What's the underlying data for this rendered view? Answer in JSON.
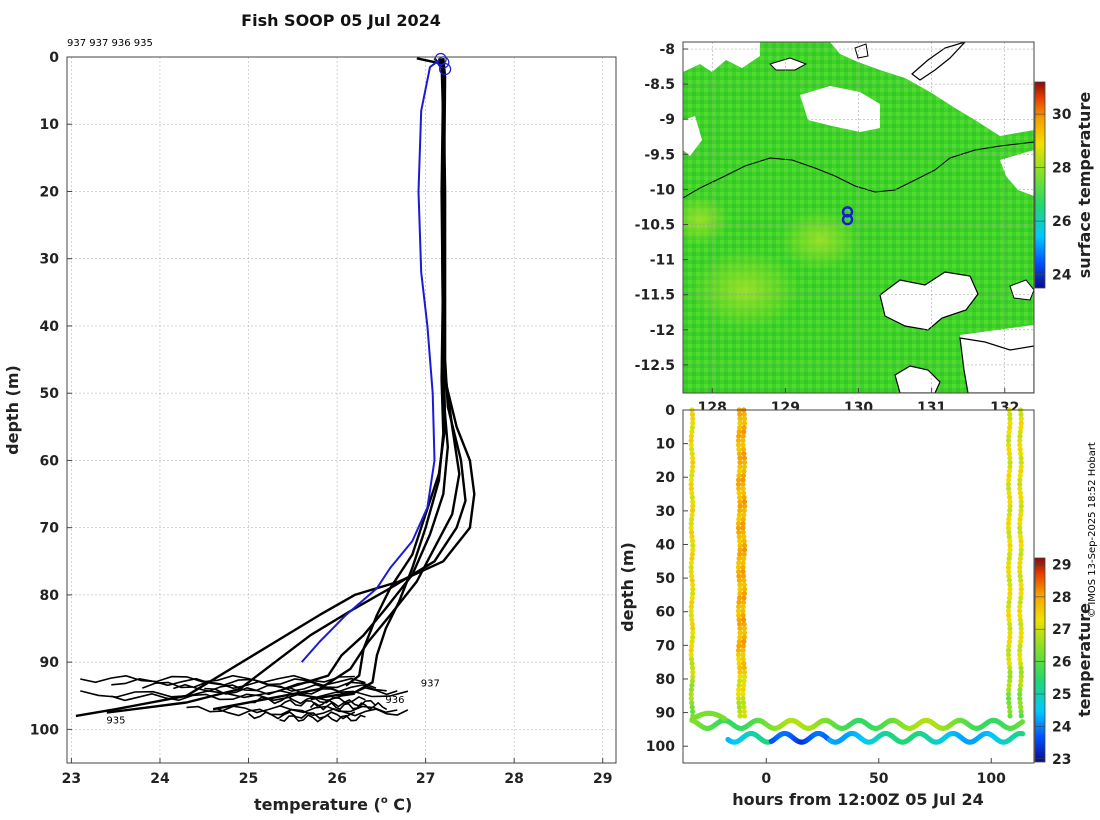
{
  "figure_title": "Fish SOOP 05 Jul 2024",
  "credit": "© IMOS 13-Sep-2025 18:52 Hobart",
  "colors": {
    "profile": "#000000",
    "latest_profile": "#1a1ad8",
    "land": "#ffffff",
    "coast": "#000000",
    "grid": "#b8b8b8"
  },
  "chart_data": [
    {
      "id": "profiles",
      "type": "line",
      "title": "Fish SOOP 05 Jul 2024",
      "xlabel": "temperature (",
      "xlabel_sup": "o",
      "xlabel_tail": " C)",
      "ylabel": "depth (m)",
      "xlim": [
        22.95,
        29.15
      ],
      "ylim": [
        105,
        0
      ],
      "xticks": [
        "23",
        "24",
        "25",
        "26",
        "27",
        "28",
        "29"
      ],
      "yticks": [
        "0",
        "10",
        "20",
        "30",
        "40",
        "50",
        "60",
        "70",
        "80",
        "90",
        "100"
      ],
      "profile_ids": "937 937 936 935",
      "end_labels": [
        {
          "text": "937",
          "t": 26.9,
          "d": 93
        },
        {
          "text": "936",
          "t": 26.5,
          "d": 95.5
        },
        {
          "text": "935",
          "t": 23.35,
          "d": 98.5
        }
      ],
      "surface_markers": [
        {
          "t": 27.17,
          "d": 0.3
        },
        {
          "t": 27.2,
          "d": 0.8
        },
        {
          "t": 27.22,
          "d": 1.8
        }
      ],
      "series": [
        {
          "name": "profile-a",
          "points": [
            [
              26.9,
              0.2
            ],
            [
              27.18,
              1
            ],
            [
              27.2,
              10
            ],
            [
              27.2,
              40
            ],
            [
              27.22,
              48
            ],
            [
              27.35,
              55
            ],
            [
              27.5,
              60
            ],
            [
              27.55,
              65
            ],
            [
              27.5,
              70
            ],
            [
              27.2,
              75
            ],
            [
              26.7,
              78
            ],
            [
              26.2,
              80
            ],
            [
              25.8,
              83
            ],
            [
              25.3,
              87
            ],
            [
              24.8,
              91
            ],
            [
              24.3,
              95
            ],
            [
              23.5,
              97
            ],
            [
              23.05,
              98
            ]
          ]
        },
        {
          "name": "profile-b",
          "points": [
            [
              27.15,
              0.2
            ],
            [
              27.2,
              2
            ],
            [
              27.22,
              20
            ],
            [
              27.22,
              45
            ],
            [
              27.25,
              52
            ],
            [
              27.4,
              60
            ],
            [
              27.45,
              66
            ],
            [
              27.35,
              70
            ],
            [
              27.1,
              75
            ],
            [
              26.6,
              79
            ],
            [
              26.2,
              82
            ],
            [
              25.7,
              86
            ],
            [
              25.3,
              90
            ],
            [
              24.9,
              94
            ],
            [
              24.3,
              96
            ],
            [
              23.4,
              97.5
            ]
          ]
        },
        {
          "name": "profile-c",
          "points": [
            [
              27.1,
              0.2
            ],
            [
              27.2,
              2
            ],
            [
              27.18,
              20
            ],
            [
              27.2,
              45
            ],
            [
              27.3,
              55
            ],
            [
              27.38,
              62
            ],
            [
              27.3,
              68
            ],
            [
              27.1,
              73
            ],
            [
              26.9,
              78
            ],
            [
              26.6,
              83
            ],
            [
              26.35,
              87
            ],
            [
              26.15,
              91
            ],
            [
              25.8,
              94
            ],
            [
              25.2,
              95.5
            ],
            [
              24.6,
              97
            ]
          ]
        },
        {
          "name": "profile-d",
          "points": [
            [
              27.2,
              0.2
            ],
            [
              27.22,
              3
            ],
            [
              27.2,
              30
            ],
            [
              27.18,
              48
            ],
            [
              27.2,
              56
            ],
            [
              27.15,
              63
            ],
            [
              27.0,
              70
            ],
            [
              26.85,
              76
            ],
            [
              26.7,
              81
            ],
            [
              26.55,
              85
            ],
            [
              26.45,
              89
            ],
            [
              26.4,
              93
            ],
            [
              26.2,
              94.5
            ],
            [
              25.7,
              95.5
            ]
          ]
        },
        {
          "name": "profile-e",
          "points": [
            [
              27.18,
              0.2
            ],
            [
              27.2,
              3
            ],
            [
              27.19,
              30
            ],
            [
              27.2,
              50
            ],
            [
              27.25,
              58
            ],
            [
              27.2,
              65
            ],
            [
              27.05,
              71
            ],
            [
              26.85,
              77
            ],
            [
              26.55,
              82
            ],
            [
              26.3,
              86
            ],
            [
              26.05,
              89
            ],
            [
              25.9,
              92
            ],
            [
              25.4,
              94
            ]
          ]
        },
        {
          "name": "profile-f",
          "points": [
            [
              27.2,
              0.2
            ],
            [
              27.21,
              4
            ],
            [
              27.2,
              40
            ],
            [
              27.22,
              55
            ],
            [
              27.15,
              62
            ],
            [
              27.0,
              68
            ],
            [
              26.85,
              74
            ],
            [
              26.6,
              79
            ],
            [
              26.45,
              83
            ],
            [
              26.3,
              88
            ],
            [
              26.25,
              92
            ],
            [
              26.1,
              93.5
            ]
          ]
        },
        {
          "name": "profile-latest",
          "latest": true,
          "points": [
            [
              27.15,
              0.5
            ],
            [
              27.05,
              1.5
            ],
            [
              26.95,
              8
            ],
            [
              26.92,
              20
            ],
            [
              26.95,
              32
            ],
            [
              27.02,
              40
            ],
            [
              27.08,
              50
            ],
            [
              27.1,
              60
            ],
            [
              27.02,
              67
            ],
            [
              26.85,
              72
            ],
            [
              26.6,
              76
            ],
            [
              26.45,
              79
            ],
            [
              26.1,
              83
            ],
            [
              25.8,
              87
            ],
            [
              25.6,
              90
            ]
          ]
        }
      ]
    },
    {
      "id": "sst-map",
      "type": "heatmap",
      "x_range": [
        127.6,
        132.4
      ],
      "y_range": [
        -12.9,
        -7.9
      ],
      "xticks": [
        "128",
        "129",
        "130",
        "131",
        "132"
      ],
      "yticks": [
        "-8",
        "-8.5",
        "-9",
        "-9.5",
        "-10",
        "-10.5",
        "-11",
        "-11.5",
        "-12",
        "-12.5"
      ],
      "station_markers": [
        {
          "lon": 129.85,
          "lat": -10.32
        },
        {
          "lon": 129.85,
          "lat": -10.43
        }
      ],
      "colorbar": {
        "label": "surface temperature",
        "range": [
          23.5,
          31.2
        ],
        "ticks": [
          "24",
          "26",
          "28",
          "30"
        ]
      }
    },
    {
      "id": "depth-time",
      "type": "scatter",
      "xlabel": "hours from 12:00Z 05 Jul 24",
      "ylabel": "depth (m)",
      "xlim": [
        -37,
        119
      ],
      "ylim": [
        105,
        0
      ],
      "xticks": [
        "0",
        "50",
        "100"
      ],
      "yticks": [
        "0",
        "10",
        "20",
        "30",
        "40",
        "50",
        "60",
        "70",
        "80",
        "90",
        "100"
      ],
      "casts": [
        {
          "hour": -33,
          "t_surface": 27.3
        },
        {
          "hour": -12,
          "t_surface": 27.8
        },
        {
          "hour": -10,
          "t_surface": 27.9
        },
        {
          "hour": 108,
          "t_surface": 27.2
        },
        {
          "hour": 113,
          "t_surface": 27.2
        }
      ],
      "bottom_tracks": [
        {
          "start_hour": -33,
          "end_hour": 114,
          "depth": 93.5,
          "amplitude": 1.2,
          "temperature": 26.2
        },
        {
          "start_hour": -17,
          "end_hour": 114,
          "depth": 97.5,
          "amplitude": 1.3,
          "temperature": 24.8
        }
      ],
      "colorbar": {
        "label": "temperature",
        "range": [
          22.9,
          29.2
        ],
        "ticks": [
          "23",
          "24",
          "25",
          "26",
          "27",
          "28",
          "29"
        ]
      }
    }
  ]
}
